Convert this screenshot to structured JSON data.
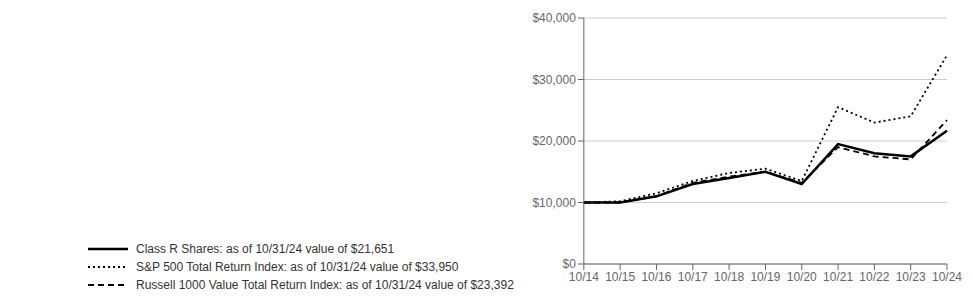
{
  "chart_data": {
    "type": "line",
    "categories": [
      "10/14",
      "10/15",
      "10/16",
      "10/17",
      "10/18",
      "10/19",
      "10/20",
      "10/21",
      "10/22",
      "10/23",
      "10/24"
    ],
    "series": [
      {
        "name": "Class R Shares: as of 10/31/24 value of $21,651",
        "color": "#000000",
        "line_style": "solid",
        "values": [
          10000,
          10000,
          11000,
          13000,
          14000,
          15000,
          13000,
          19500,
          18000,
          17500,
          21651
        ]
      },
      {
        "name": "S&P 500 Total Return Index: as of 10/31/24 value of $33,950",
        "color": "#000000",
        "line_style": "dotted",
        "values": [
          10000,
          10200,
          11500,
          13500,
          14800,
          15500,
          13500,
          25500,
          23000,
          24000,
          33950
        ]
      },
      {
        "name": "Russell 1000 Value Total Return Index: as of 10/31/24 value of $23,392",
        "color": "#000000",
        "line_style": "dashed",
        "values": [
          10000,
          10000,
          11000,
          13200,
          14200,
          15000,
          13200,
          19000,
          17500,
          17000,
          23392
        ]
      }
    ],
    "ylim": [
      0,
      40000
    ],
    "yticks": [
      {
        "value": 0,
        "label": "$0"
      },
      {
        "value": 10000,
        "label": "$10,000"
      },
      {
        "value": 20000,
        "label": "$20,000"
      },
      {
        "value": 30000,
        "label": "$30,000"
      },
      {
        "value": 40000,
        "label": "$40,000"
      }
    ],
    "grid": true,
    "legend": "bottom"
  }
}
